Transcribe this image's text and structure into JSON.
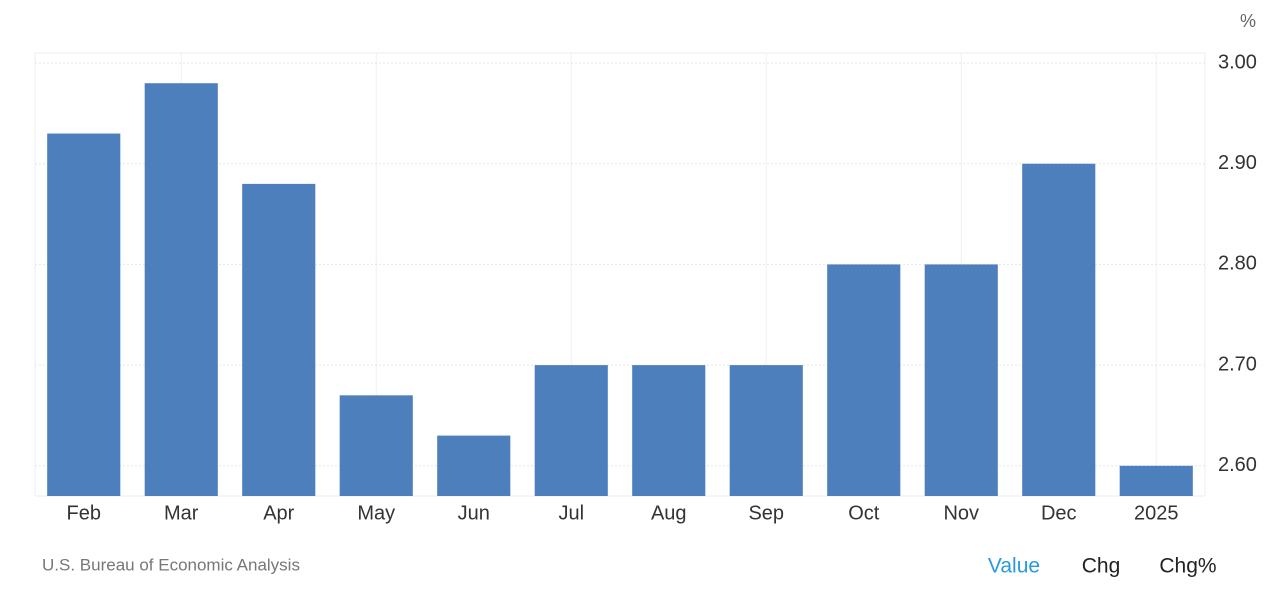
{
  "chart_data": {
    "type": "bar",
    "y_unit": "%",
    "categories": [
      "Feb",
      "Mar",
      "Apr",
      "May",
      "Jun",
      "Jul",
      "Aug",
      "Sep",
      "Oct",
      "Nov",
      "Dec",
      "2025"
    ],
    "values": [
      2.93,
      2.98,
      2.88,
      2.67,
      2.63,
      2.7,
      2.7,
      2.7,
      2.8,
      2.8,
      2.9,
      2.6
    ],
    "color": "#4e7fbd",
    "ylim": [
      2.57,
      3.01
    ],
    "yticks": [
      {
        "value": 2.6,
        "label": "2.60"
      },
      {
        "value": 2.7,
        "label": "2.70"
      },
      {
        "value": 2.8,
        "label": "2.80"
      },
      {
        "value": 2.9,
        "label": "2.90"
      },
      {
        "value": 3,
        "label": "3.00"
      }
    ],
    "grid": true
  },
  "source": "U.S. Bureau of Economic Analysis",
  "tabs": [
    "Value",
    "Chg",
    "Chg%"
  ]
}
